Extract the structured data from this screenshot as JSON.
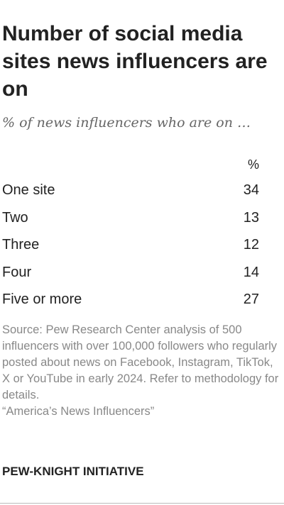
{
  "title": "Number of social media sites news influencers are on",
  "subtitle": "% of news influencers who are on …",
  "chart_data": {
    "type": "table",
    "value_header": "%",
    "rows": [
      {
        "label": "One site",
        "value": 34
      },
      {
        "label": "Two",
        "value": 13
      },
      {
        "label": "Three",
        "value": 12
      },
      {
        "label": "Four",
        "value": 14
      },
      {
        "label": "Five or more",
        "value": 27
      }
    ]
  },
  "source": {
    "text": "Source: Pew Research Center analysis of 500 influencers with over 100,000 followers who regularly posted about news on Facebook, Instagram, TikTok, X or YouTube in early 2024. Refer to methodology for details.",
    "report": "“America’s News Influencers”"
  },
  "brand": "PEW-KNIGHT INITIATIVE"
}
